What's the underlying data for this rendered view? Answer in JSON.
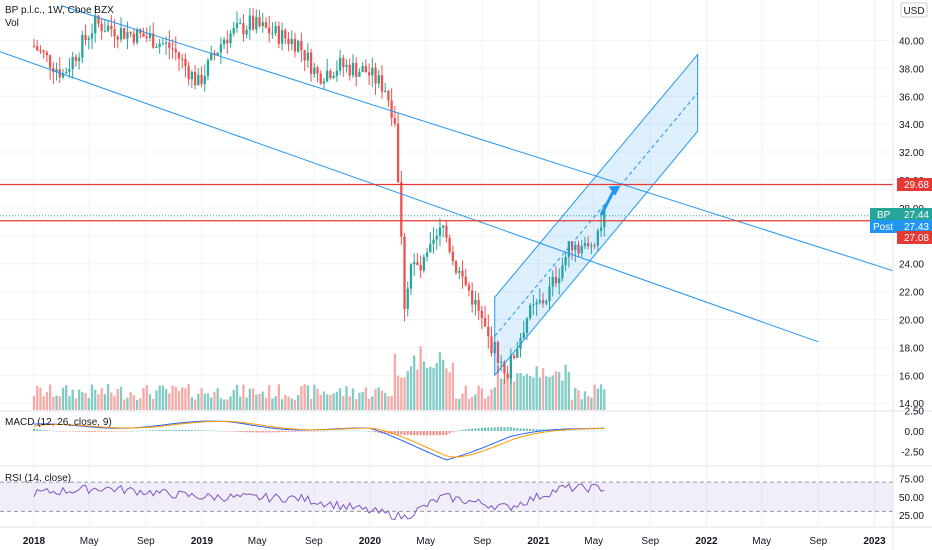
{
  "header": {
    "title": "BP p.l.c., 1W, Cboe BZX",
    "volume_label": "Vol",
    "currency_button": "USD"
  },
  "price_tags": {
    "resistance": "29.68",
    "ticker_label": "BP",
    "ticker_value": "27.44",
    "post_label": "Post",
    "post_value": "27.43",
    "support": "27.08"
  },
  "panes": {
    "macd_label": "MACD (12, 26, close, 9)",
    "rsi_label": "RSI (14, close)"
  },
  "colors": {
    "up": "#26a69a",
    "down": "#ef5350",
    "vol_up": "#80cbc4",
    "vol_down": "#f7a9a7",
    "trend": "#2196f3",
    "level": "#e53935",
    "macd": "#2962ff",
    "signal": "#ff9800",
    "rsi": "#7e57c2"
  },
  "chart_data": {
    "type": "candlestick",
    "y_ticks": [
      "40.00",
      "38.00",
      "36.00",
      "34.00",
      "32.00",
      "30.00",
      "28.00",
      "26.00",
      "24.00",
      "22.00",
      "20.00",
      "18.00",
      "16.00",
      "14.00"
    ],
    "macd_ticks": [
      "2.50",
      "0.00",
      "-2.50"
    ],
    "rsi_ticks": [
      "75.00",
      "50.00",
      "25.00"
    ],
    "x_labels": [
      "2018",
      "May",
      "Sep",
      "2019",
      "May",
      "Sep",
      "2020",
      "May",
      "Sep",
      "2021",
      "May",
      "Sep",
      "2022",
      "May",
      "Sep",
      "2023"
    ],
    "ylim": [
      13.5,
      41.5
    ],
    "levels": [
      29.68,
      27.08
    ],
    "channel": {
      "start": [
        "2020-09-28",
        16.0,
        21.6
      ],
      "end": [
        "2021-12-13",
        33.5,
        39.0
      ]
    },
    "arrow": {
      "from": [
        "2021-05-17",
        27.5
      ],
      "to": [
        "2021-06-28",
        29.6
      ]
    },
    "anchors": [
      [
        "2018-01-01",
        39.6
      ],
      [
        "2018-03-05",
        37.6
      ],
      [
        "2018-05-14",
        41.2
      ],
      [
        "2018-07-16",
        40.6
      ],
      [
        "2018-09-10",
        40.2
      ],
      [
        "2018-10-29",
        39.4
      ],
      [
        "2018-12-24",
        36.9
      ],
      [
        "2019-02-18",
        40.2
      ],
      [
        "2019-04-15",
        41.2
      ],
      [
        "2019-06-03",
        40.6
      ],
      [
        "2019-07-29",
        39.8
      ],
      [
        "2019-09-09",
        37.5
      ],
      [
        "2019-10-28",
        38.2
      ],
      [
        "2019-12-23",
        37.8
      ],
      [
        "2020-02-03",
        36.6
      ],
      [
        "2020-02-24",
        34.4
      ],
      [
        "2020-03-16",
        21.2
      ],
      [
        "2020-03-30",
        24.0
      ],
      [
        "2020-04-20",
        23.5
      ],
      [
        "2020-06-08",
        26.6
      ],
      [
        "2020-07-06",
        23.8
      ],
      [
        "2020-08-10",
        21.6
      ],
      [
        "2020-09-14",
        18.6
      ],
      [
        "2020-10-26",
        16.2
      ],
      [
        "2020-12-07",
        20.2
      ],
      [
        "2021-01-18",
        21.6
      ],
      [
        "2021-02-22",
        24.0
      ],
      [
        "2021-03-15",
        25.5
      ],
      [
        "2021-04-19",
        25.0
      ],
      [
        "2021-05-24",
        27.4
      ]
    ],
    "macd_anchors": [
      [
        "2018-01-01",
        0.5
      ],
      [
        "2019-03-01",
        0.9
      ],
      [
        "2020-01-01",
        0.0
      ],
      [
        "2020-06-15",
        -3.2
      ],
      [
        "2020-11-01",
        -0.8
      ],
      [
        "2021-05-24",
        0.6
      ]
    ],
    "rsi_anchors": [
      [
        "2018-01-01",
        55
      ],
      [
        "2018-06-01",
        62
      ],
      [
        "2019-01-01",
        50
      ],
      [
        "2019-08-01",
        48
      ],
      [
        "2020-03-16",
        22
      ],
      [
        "2020-06-08",
        50
      ],
      [
        "2020-10-26",
        35
      ],
      [
        "2021-02-22",
        62
      ],
      [
        "2021-05-24",
        62
      ]
    ]
  }
}
